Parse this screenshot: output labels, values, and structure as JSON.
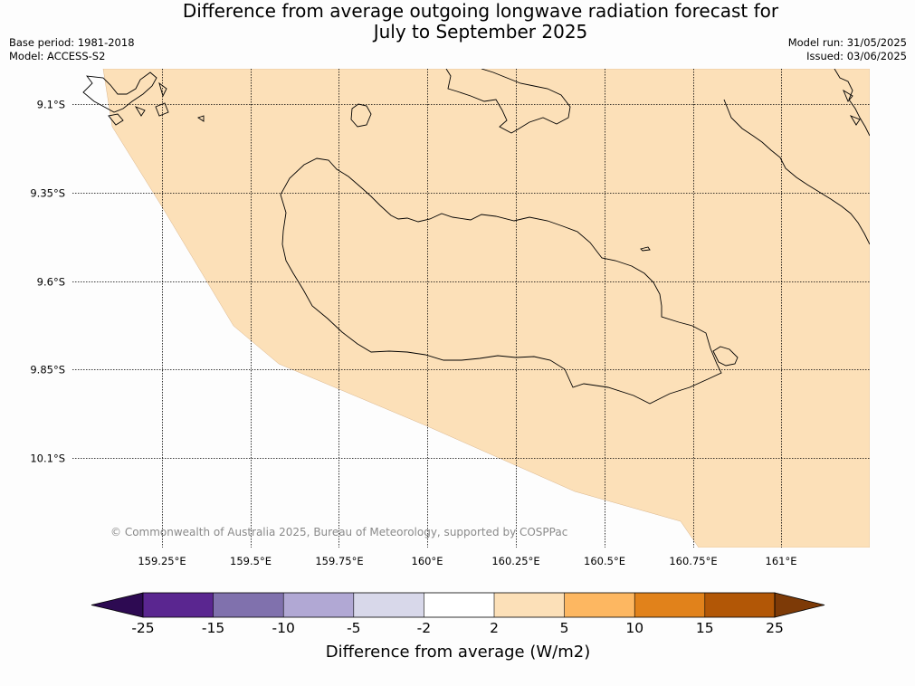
{
  "header": {
    "title_line1": "Difference from average outgoing longwave radiation forecast for",
    "title_line2": "July to September 2025",
    "base_period": "Base period: 1981-2018",
    "model": "Model: ACCESS-S2",
    "model_run": "Model run: 31/05/2025",
    "issued": "Issued: 03/06/2025"
  },
  "map": {
    "lat_labels": [
      "9.1°S",
      "9.35°S",
      "9.6°S",
      "9.85°S",
      "10.1°S"
    ],
    "lon_labels": [
      "159.25°E",
      "159.5°E",
      "159.75°E",
      "160°E",
      "160.25°E",
      "160.5°E",
      "160.75°E",
      "161°E"
    ],
    "fill_color": "#fce0b8",
    "fill_category": "2 to 5",
    "credit": "© Commonwealth of Australia 2025, Bureau of Meteorology, supported by COSPPac"
  },
  "legend": {
    "title": "Difference from average (W/m2)",
    "tick_labels": [
      "-25",
      "-15",
      "-10",
      "-5",
      "-2",
      "2",
      "5",
      "10",
      "15",
      "25"
    ],
    "colors": [
      "#2d0a52",
      "#5a2690",
      "#8071ad",
      "#b1a8d4",
      "#d8d8ea",
      "#ffffff",
      "#fce0b8",
      "#fdb761",
      "#e1821b",
      "#b25706",
      "#7d3a07"
    ]
  }
}
